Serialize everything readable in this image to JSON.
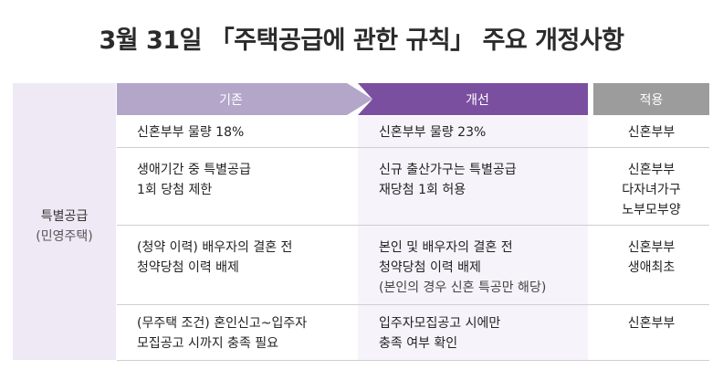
{
  "title": "3월 31일 「주택공급에 관한 규칙」 주요 개정사항",
  "headers": {
    "before": "기존",
    "after": "개선",
    "apply": "적용"
  },
  "category": {
    "line1": "특별공급",
    "line2": "(민영주택)"
  },
  "rows": [
    {
      "before": [
        "신혼부부 물량 18%"
      ],
      "after": [
        "신혼부부 물량 23%"
      ],
      "apply": [
        "신혼부부"
      ]
    },
    {
      "before": [
        "생애기간 중 특별공급",
        "1회 당첨 제한"
      ],
      "after": [
        "신규 출산가구는 특별공급",
        "재당첨 1회 허용"
      ],
      "apply": [
        "신혼부부",
        "다자녀가구",
        "노부모부양"
      ]
    },
    {
      "before": [
        "(청약 이력) 배우자의 결혼 전",
        "청약당첨 이력 배제"
      ],
      "after": [
        "본인 및 배우자의 결혼 전",
        "청약당첨 이력 배제",
        "(본인의 경우 신혼 특공만 해당)"
      ],
      "apply": [
        "신혼부부",
        "생애최초"
      ]
    },
    {
      "before": [
        "(무주택 조건) 혼인신고~입주자",
        "모집공고 시까지 충족 필요"
      ],
      "after": [
        "입주자모집공고 시에만",
        "충족 여부 확인"
      ],
      "apply": [
        "신혼부부"
      ]
    }
  ]
}
